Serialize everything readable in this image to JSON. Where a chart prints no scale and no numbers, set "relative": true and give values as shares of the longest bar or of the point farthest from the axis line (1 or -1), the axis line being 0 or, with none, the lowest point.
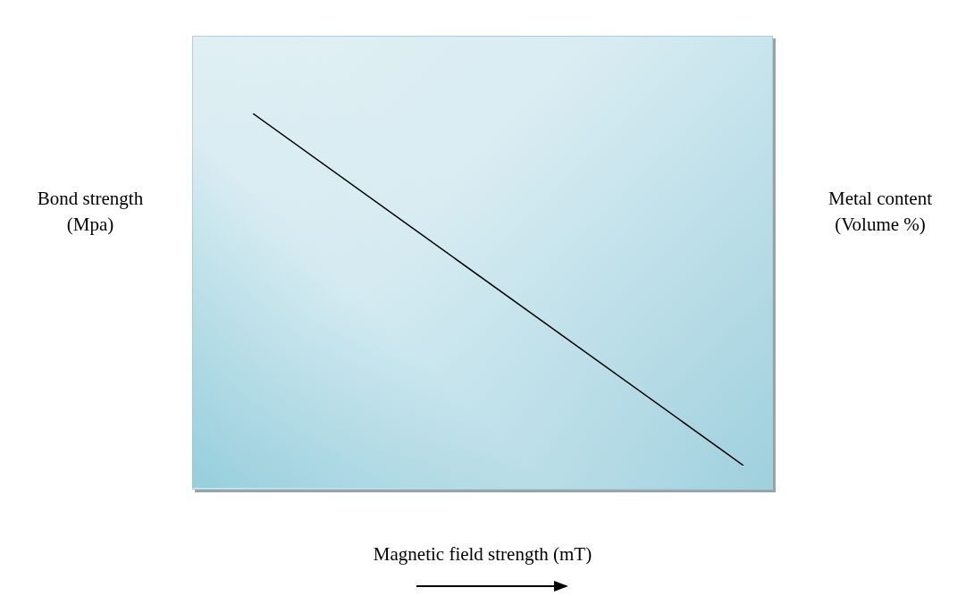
{
  "chart_data": {
    "type": "line",
    "relative": true,
    "categories": [
      null,
      null
    ],
    "values": [
      1,
      0
    ],
    "color": "#000000",
    "marker": "none",
    "xlabel": "Magnetic field strength (mT)",
    "ylabel": "Bond strength\n(Mpa)",
    "y2label": "Metal content\n(Volume %)"
  }
}
